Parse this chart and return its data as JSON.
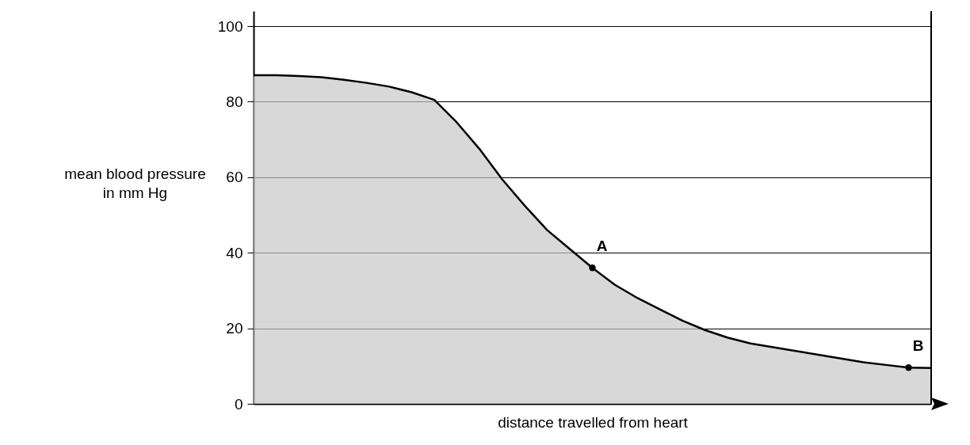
{
  "chart_data": {
    "type": "area",
    "xlabel": "distance travelled from heart",
    "ylabel": "mean blood pressure\nin mm Hg",
    "categories": [
      null,
      null,
      null,
      null,
      null,
      null,
      null,
      null,
      null,
      null,
      null,
      null,
      null,
      null,
      null,
      null,
      null,
      null,
      null,
      null,
      null,
      null,
      null,
      null,
      null,
      null,
      null,
      null,
      null,
      null,
      null
    ],
    "series": [
      {
        "color": "#c8c8c8",
        "values": [
          87,
          87,
          86.8,
          86.5,
          85.8,
          85,
          84,
          82.5,
          80.5,
          74.5,
          67.5,
          59.5,
          52.5,
          46,
          41,
          36,
          31.5,
          28,
          25,
          22,
          19.5,
          17.5,
          16,
          15,
          14,
          13,
          12,
          11,
          10.3,
          9.6,
          9.5
        ]
      },
      {
        "type": "scatter",
        "marker": "circle",
        "color": "#000000",
        "values": [
          null,
          null,
          null,
          null,
          null,
          null,
          null,
          null,
          null,
          null,
          null,
          null,
          null,
          null,
          null,
          36,
          null,
          null,
          null,
          null,
          null,
          null,
          null,
          null,
          null,
          null,
          null,
          null,
          null,
          9.6,
          null
        ]
      }
    ],
    "ylim": [
      0,
      104
    ],
    "yticks": [
      0,
      20,
      40,
      60,
      80,
      100
    ],
    "grid": "y",
    "tick_labels": "y",
    "annotations": [
      "A",
      "B"
    ]
  }
}
